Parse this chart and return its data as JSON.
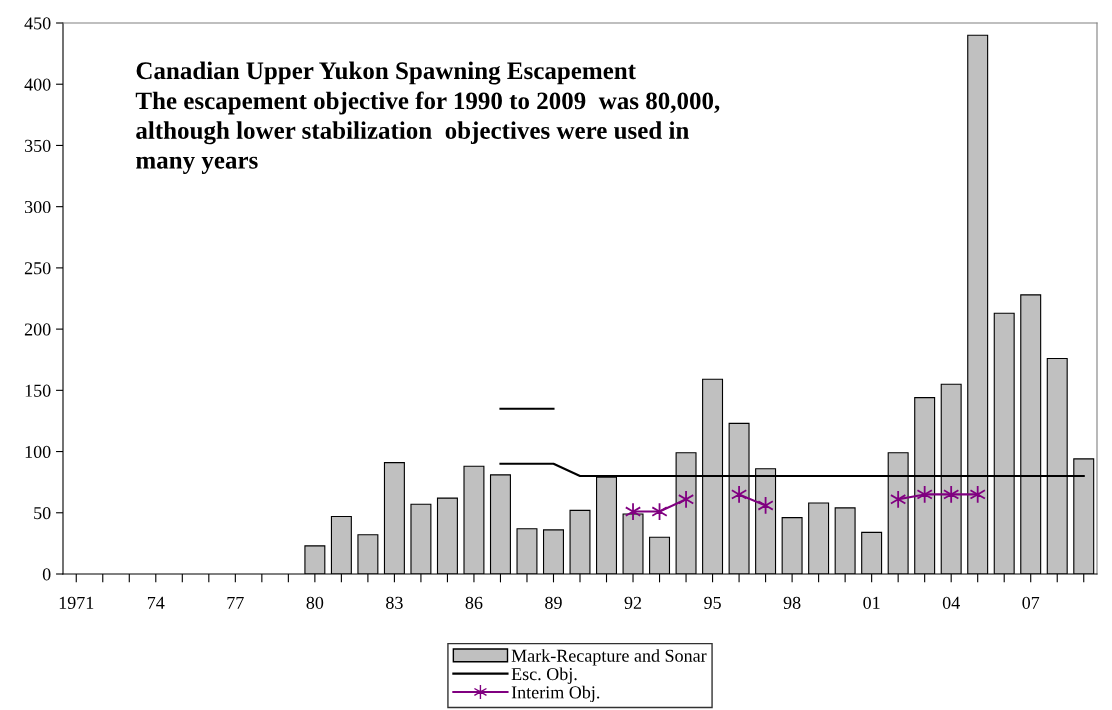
{
  "chart_data": {
    "type": "bar",
    "annotations": [
      "Canadian Upper Yukon Spawning Escapement\nThe escapement objective for 1990 to 2009  was 80,000,\nalthough lower stabilization  objectives were used in\nmany years"
    ],
    "categories": [
      "1971",
      null,
      null,
      "74",
      null,
      null,
      "77",
      null,
      null,
      "80",
      null,
      null,
      "83",
      null,
      null,
      "86",
      null,
      null,
      "89",
      null,
      null,
      "92",
      null,
      null,
      "95",
      null,
      null,
      "98",
      null,
      null,
      "01",
      null,
      null,
      "04",
      null,
      null,
      "07",
      null,
      null
    ],
    "series": [
      {
        "name": "Mark-Recapture and Sonar",
        "color": "#c0c0c0",
        "values": [
          null,
          null,
          null,
          null,
          null,
          null,
          null,
          null,
          null,
          23,
          47,
          32,
          91,
          57,
          62,
          88,
          81,
          37,
          36,
          52,
          79,
          49,
          30,
          99,
          159,
          123,
          86,
          46,
          58,
          54,
          34,
          99,
          144,
          155,
          440,
          213,
          228,
          176,
          94
        ]
      },
      {
        "name": "Esc. Obj.",
        "type": "line",
        "color": "#000000",
        "marker": "none",
        "values": [
          null,
          null,
          null,
          null,
          null,
          null,
          null,
          null,
          null,
          null,
          null,
          null,
          null,
          null,
          null,
          null,
          90,
          90,
          90,
          80,
          80,
          80,
          80,
          80,
          80,
          80,
          80,
          80,
          80,
          80,
          80,
          80,
          80,
          80,
          80,
          80,
          80,
          80,
          80
        ]
      },
      {
        "type": "line",
        "color": "#000000",
        "marker": "none",
        "values": [
          null,
          null,
          null,
          null,
          null,
          null,
          null,
          null,
          null,
          null,
          null,
          null,
          null,
          null,
          null,
          null,
          135,
          135,
          135,
          null,
          null,
          null,
          null,
          null,
          null,
          null,
          null,
          null,
          null,
          null,
          null,
          null,
          null,
          null,
          null,
          null,
          null,
          null,
          null
        ]
      },
      {
        "name": "Interim Obj.",
        "type": "line",
        "color": "#800080",
        "marker": "cross",
        "values": [
          null,
          null,
          null,
          null,
          null,
          null,
          null,
          null,
          null,
          null,
          null,
          null,
          null,
          null,
          null,
          null,
          null,
          null,
          null,
          null,
          null,
          51,
          51,
          61,
          null,
          65,
          56,
          null,
          null,
          null,
          null,
          61,
          65,
          65,
          65,
          null,
          null,
          null,
          null
        ]
      }
    ],
    "ylim": [
      0,
      450
    ],
    "yticks": [
      0,
      50,
      100,
      150,
      200,
      250,
      300,
      350,
      400,
      450
    ],
    "grid": false,
    "legend": "bottom"
  }
}
